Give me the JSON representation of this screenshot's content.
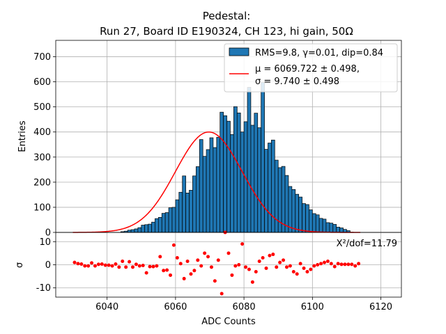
{
  "chart_data": [
    {
      "panel": "histogram",
      "type": "bar",
      "title_line1": "Pedestal:",
      "title_line2": "Run 27, Board ID E190324, CH 123, hi gain, 50Ω",
      "xlabel": "",
      "ylabel": "Entries",
      "xlim": [
        6025,
        6126
      ],
      "ylim": [
        0,
        765
      ],
      "grid": true,
      "bin_width": 1,
      "bin_start": 6030,
      "yticks": [
        0,
        100,
        200,
        300,
        400,
        500,
        600,
        700
      ],
      "bar_color": "#1f77b4",
      "values": [
        0,
        0,
        0,
        0,
        0,
        0,
        0,
        0,
        0,
        0,
        0,
        0,
        0,
        0,
        3,
        5,
        9,
        11,
        14,
        19,
        29,
        31,
        33,
        41,
        55,
        60,
        76,
        79,
        98,
        100,
        130,
        160,
        225,
        157,
        168,
        225,
        262,
        370,
        303,
        330,
        377,
        338,
        379,
        479,
        465,
        443,
        390,
        501,
        476,
        400,
        441,
        578,
        427,
        475,
        417,
        597,
        331,
        356,
        368,
        288,
        258,
        263,
        227,
        183,
        171,
        152,
        141,
        115,
        111,
        90,
        75,
        70,
        56,
        53,
        39,
        37,
        32,
        21,
        18,
        12,
        7,
        1,
        0,
        0
      ],
      "fit_curve": {
        "color": "#ff0000",
        "mu": 6069.722,
        "sigma": 9.74,
        "amplitude": 400
      },
      "legend": {
        "placement": "top-right",
        "histogram_label": "RMS=9.8, γ=0.01, dip=0.84",
        "fit_label_line1": "μ = 6069.722 ± 0.498,",
        "fit_label_line2": "σ = 9.740 ± 0.498"
      }
    },
    {
      "panel": "residuals",
      "type": "scatter",
      "xlabel": "ADC Counts",
      "ylabel": "σ",
      "xlim": [
        6025,
        6126
      ],
      "ylim": [
        -14,
        14
      ],
      "grid": true,
      "xticks": [
        6040,
        6060,
        6080,
        6100,
        6120
      ],
      "yticks": [
        -10,
        0,
        10
      ],
      "point_color": "#ff0000",
      "annotation": "X²/dof=11.79",
      "x": [
        6030,
        6031,
        6032,
        6033,
        6034,
        6035,
        6036,
        6037,
        6038,
        6039,
        6040,
        6041,
        6042,
        6043,
        6044,
        6045,
        6046,
        6047,
        6048,
        6049,
        6050,
        6051,
        6052,
        6053,
        6054,
        6055,
        6056,
        6057,
        6058,
        6059,
        6060,
        6061,
        6062,
        6063,
        6064,
        6065,
        6066,
        6067,
        6068,
        6069,
        6070,
        6071,
        6072,
        6073,
        6074,
        6075,
        6076,
        6077,
        6078,
        6079,
        6080,
        6081,
        6082,
        6083,
        6084,
        6085,
        6086,
        6087,
        6088,
        6089,
        6090,
        6091,
        6092,
        6093,
        6094,
        6095,
        6096,
        6097,
        6098,
        6099,
        6100,
        6101,
        6102,
        6103,
        6104,
        6105,
        6106,
        6107,
        6108,
        6109,
        6110,
        6111,
        6112,
        6113
      ],
      "values": [
        1,
        0.5,
        0.3,
        -0.5,
        -0.5,
        0.8,
        -0.5,
        0.2,
        0.3,
        -0.2,
        -0.2,
        -0.5,
        0.3,
        -1,
        1.5,
        -1,
        1.3,
        -1,
        0.2,
        -0.5,
        -0.3,
        -3.5,
        -0.8,
        -0.8,
        -0.5,
        3.5,
        -2.5,
        -2.3,
        -4.5,
        8.5,
        3,
        0.5,
        -6,
        1.5,
        -4,
        -2.5,
        2,
        -0.5,
        5,
        3.5,
        -1,
        -7,
        2,
        -12.5,
        14,
        5,
        -4.5,
        -0.5,
        0,
        9,
        -1,
        -2,
        -7.5,
        -3,
        1.5,
        3,
        -1.5,
        4,
        4.5,
        -1,
        1,
        2,
        -1,
        -0.5,
        -3,
        -4,
        0.5,
        -1.5,
        -3,
        -2,
        -0.5,
        0,
        0.5,
        1,
        1.5,
        0.5,
        -0.8,
        0.5,
        0.2,
        0.2,
        0.2,
        0.2,
        -0.5,
        0.5
      ]
    }
  ]
}
